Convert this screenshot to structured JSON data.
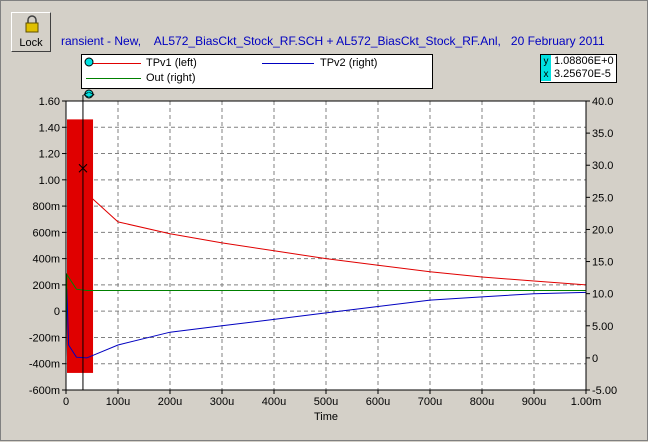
{
  "toolbar": {
    "lock_label": "Lock"
  },
  "title": "ransient - New,    AL572_BiasCkt_Stock_RF.SCH + AL572_BiasCkt_Stock_RF.Anl,   20 February 2011",
  "cursor": {
    "y_tag": "y",
    "y_value": "1.08806E+0",
    "x_tag": "x",
    "x_value": "3.25670E-5",
    "marker_label": "<>"
  },
  "colors": {
    "tpv1": "#e00000",
    "tpv2": "#0000c0",
    "out": "#008000",
    "cursor": "#00e0e0"
  },
  "chart_data": {
    "type": "line",
    "xlabel": "Time",
    "x_ticks": [
      "0",
      "100u",
      "200u",
      "300u",
      "400u",
      "500u",
      "600u",
      "700u",
      "800u",
      "900u",
      "1.00m"
    ],
    "y_left_ticks": [
      "1.60",
      "1.40",
      "1.20",
      "1.00",
      "800m",
      "600m",
      "400m",
      "200m",
      "0",
      "-200m",
      "-400m",
      "-600m"
    ],
    "y_right_ticks": [
      "40.0",
      "35.0",
      "30.0",
      "25.0",
      "20.0",
      "15.0",
      "10.0",
      "5.00",
      "0",
      "-5.00"
    ],
    "xlim": [
      0,
      0.001
    ],
    "ylim_left": [
      -0.6,
      1.6
    ],
    "ylim_right": [
      -5,
      40
    ],
    "grid": true,
    "legend_placement": "top",
    "series": [
      {
        "name": "TPv1 (left)",
        "axis": "left",
        "color": "#e00000",
        "x": [
          5e-05,
          0.0001,
          0.0002,
          0.0003,
          0.0004,
          0.0005,
          0.0006,
          0.0007,
          0.0008,
          0.0009,
          0.001
        ],
        "y": [
          0.86,
          0.68,
          0.59,
          0.52,
          0.46,
          0.4,
          0.35,
          0.3,
          0.26,
          0.23,
          0.2
        ]
      },
      {
        "name": "TPv2 (right)",
        "axis": "right",
        "color": "#0000c0",
        "x": [
          0.0,
          1.5e-06,
          5e-06,
          2e-05,
          4e-05,
          0.0001,
          0.0002,
          0.0003,
          0.0004,
          0.0005,
          0.0006,
          0.0007,
          0.0008,
          0.0009,
          0.001
        ],
        "y": [
          0.0,
          10.8,
          2.0,
          0.1,
          0.0,
          2.0,
          4.0,
          5.0,
          6.0,
          7.0,
          8.0,
          9.0,
          9.5,
          10.0,
          10.2
        ]
      },
      {
        "name": "Out (right)",
        "axis": "right",
        "color": "#008000",
        "x": [
          0.0,
          1.5e-06,
          2e-05,
          4e-05,
          0.001
        ],
        "y": [
          0.0,
          13.0,
          10.7,
          10.5,
          10.5
        ]
      }
    ],
    "oscillation_band": {
      "series": "TPv1 (left)",
      "x_start": 0.0,
      "x_end": 5.2e-05,
      "y_low": -0.47,
      "y_high": 1.46,
      "color": "#e00000"
    },
    "cursor_x": 3.26e-05,
    "cursor_y": 1.08806
  }
}
